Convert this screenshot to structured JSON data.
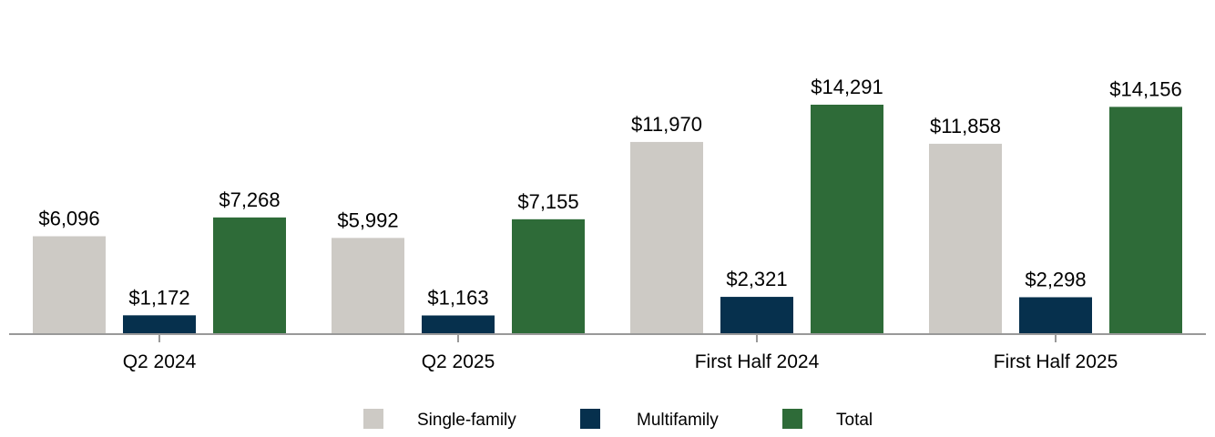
{
  "chart_data": {
    "type": "bar",
    "categories": [
      "Q2 2024",
      "Q2 2025",
      "First Half 2024",
      "First Half 2025"
    ],
    "series": [
      {
        "name": "Single-family",
        "color": "#cdcac5",
        "values": [
          6096,
          5992,
          11970,
          11858
        ],
        "labels": [
          "$6,096",
          "$5,992",
          "$11,970",
          "$11,858"
        ]
      },
      {
        "name": "Multifamily",
        "color": "#06304d",
        "values": [
          1172,
          1163,
          2321,
          2298
        ],
        "labels": [
          "$1,172",
          "$1,163",
          "$2,321",
          "$2,298"
        ]
      },
      {
        "name": "Total",
        "color": "#2e6b38",
        "values": [
          7268,
          7155,
          14291,
          14156
        ],
        "labels": [
          "$7,268",
          "$7,155",
          "$14,291",
          "$14,156"
        ]
      }
    ],
    "ylim": [
      0,
      16000
    ],
    "grid": false,
    "legend_position": "bottom-center",
    "axis_color": "#999999"
  }
}
